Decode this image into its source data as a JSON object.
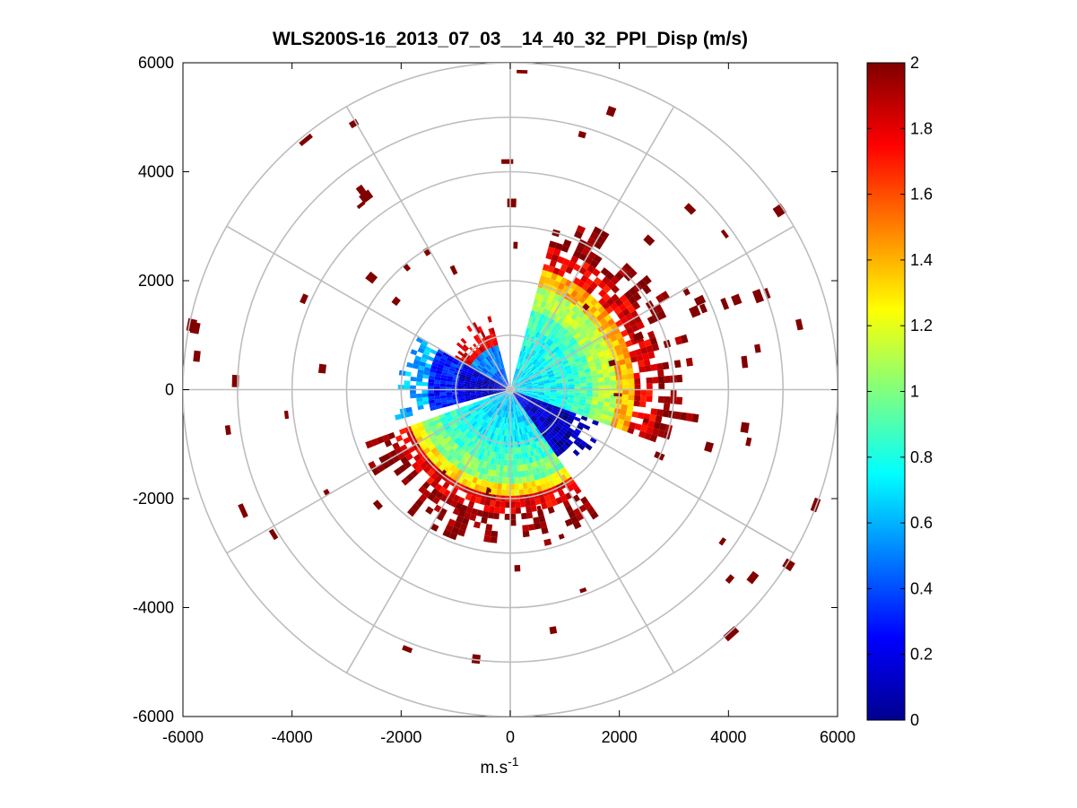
{
  "chart_data": {
    "type": "polar-ppi",
    "title": "WLS200S-16_2013_07_03__14_40_32_PPI_Disp (m/s)",
    "xlabel_base": "m.s",
    "xlabel_sup": "-1",
    "xlim": [
      -6000,
      6000
    ],
    "ylim": [
      -6000,
      6000
    ],
    "x_ticks": [
      -6000,
      -4000,
      -2000,
      0,
      2000,
      4000,
      6000
    ],
    "y_ticks": [
      6000,
      4000,
      2000,
      0,
      -2000,
      -4000,
      -6000
    ],
    "range_rings_m": [
      1000,
      2000,
      3000,
      4000,
      5000,
      6000
    ],
    "spoke_angles_deg": [
      0,
      30,
      60,
      90,
      120,
      150,
      180,
      210,
      240,
      270,
      300,
      330
    ],
    "colorbar": {
      "min": 0,
      "max": 2,
      "ticks": [
        0,
        0.2,
        0.4,
        0.6,
        0.8,
        1,
        1.2,
        1.4,
        1.6,
        1.8,
        2
      ],
      "colormap": "jet"
    },
    "sectors": [
      {
        "az_from_deg": 15,
        "az_to_deg": 110,
        "range_from_m": 0,
        "range_to_m": 3000,
        "value_profile": [
          0.7,
          0.75,
          0.8,
          0.9,
          1.1,
          1.4,
          1.8,
          2.0
        ]
      },
      {
        "az_from_deg": 110,
        "az_to_deg": 145,
        "range_from_m": 0,
        "range_to_m": 1600,
        "value_profile": [
          0.2,
          0.15,
          0.1,
          0.1
        ]
      },
      {
        "az_from_deg": 145,
        "az_to_deg": 250,
        "range_from_m": 0,
        "range_to_m": 2600,
        "value_profile": [
          0.65,
          0.7,
          0.75,
          0.85,
          1.0,
          1.3,
          1.8,
          2.0
        ]
      },
      {
        "az_from_deg": 255,
        "az_to_deg": 300,
        "range_from_m": 0,
        "range_to_m": 1900,
        "value_profile": [
          0.1,
          0.15,
          0.3,
          0.6
        ]
      },
      {
        "az_from_deg": 300,
        "az_to_deg": 345,
        "range_from_m": 0,
        "range_to_m": 1200,
        "value_profile": [
          0.4,
          0.5,
          1.8
        ]
      }
    ]
  }
}
